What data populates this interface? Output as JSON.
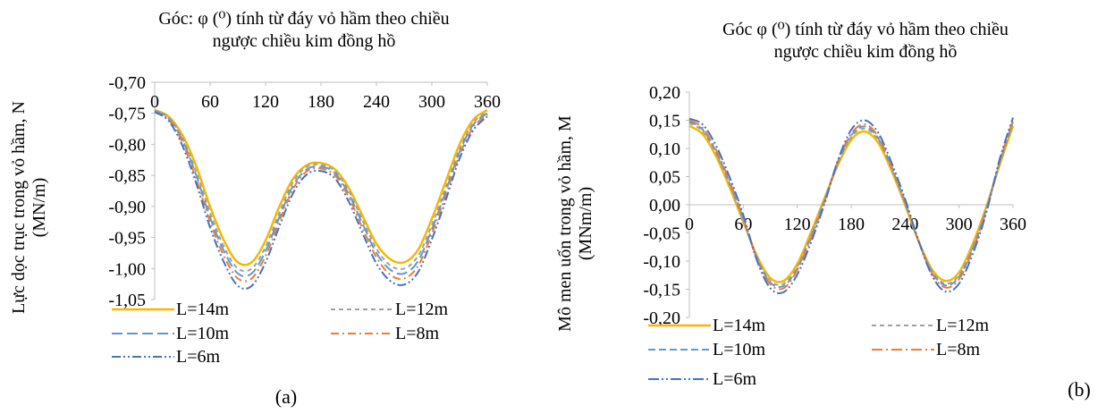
{
  "chart_data": [
    {
      "id": "a",
      "type": "line",
      "panel_label": "(a)",
      "title_lines": [
        "Góc: φ (⁰) tính từ đáy vỏ hầm theo chiều",
        "ngược chiều kim đồng hồ"
      ],
      "ylabel_lines": [
        "Lực dọc trục trong vỏ hầm, N",
        "(MN/m)"
      ],
      "xlim": [
        0,
        360
      ],
      "ylim": [
        -1.05,
        -0.7
      ],
      "x_axis_position": "top",
      "xticks": [
        "0",
        "60",
        "120",
        "180",
        "240",
        "300",
        "360"
      ],
      "yticks": [
        "-0,70",
        "-0,75",
        "-0,80",
        "-0,85",
        "-0,90",
        "-0,95",
        "-1,00",
        "-1,05"
      ],
      "grid": false,
      "legend_position": "bottom",
      "x": [
        0,
        15,
        30,
        45,
        60,
        75,
        90,
        105,
        120,
        135,
        150,
        165,
        180,
        195,
        210,
        225,
        240,
        255,
        270,
        285,
        300,
        315,
        330,
        345,
        360
      ],
      "series": [
        {
          "name": "L=14m",
          "color": "#f5b800",
          "dash": "solid",
          "values": [
            -0.745,
            -0.755,
            -0.785,
            -0.835,
            -0.9,
            -0.955,
            -0.99,
            -0.99,
            -0.955,
            -0.9,
            -0.855,
            -0.833,
            -0.83,
            -0.84,
            -0.87,
            -0.915,
            -0.96,
            -0.985,
            -0.99,
            -0.97,
            -0.92,
            -0.86,
            -0.8,
            -0.76,
            -0.745
          ]
        },
        {
          "name": "L=12m",
          "color": "#a0a0a0",
          "dash": "5,4",
          "values": [
            -0.745,
            -0.757,
            -0.79,
            -0.845,
            -0.91,
            -0.965,
            -1.0,
            -1.0,
            -0.965,
            -0.91,
            -0.86,
            -0.836,
            -0.833,
            -0.843,
            -0.875,
            -0.922,
            -0.968,
            -0.995,
            -1.0,
            -0.98,
            -0.93,
            -0.87,
            -0.808,
            -0.765,
            -0.748
          ]
        },
        {
          "name": "L=10m",
          "color": "#5b9bd5",
          "dash": "12,5",
          "values": [
            -0.746,
            -0.758,
            -0.793,
            -0.85,
            -0.918,
            -0.972,
            -1.008,
            -1.008,
            -0.972,
            -0.917,
            -0.866,
            -0.84,
            -0.836,
            -0.846,
            -0.88,
            -0.928,
            -0.975,
            -1.002,
            -1.008,
            -0.988,
            -0.937,
            -0.876,
            -0.812,
            -0.768,
            -0.75
          ]
        },
        {
          "name": "L=8m",
          "color": "#ed7d31",
          "dash": "9,4,2,4",
          "values": [
            -0.747,
            -0.76,
            -0.797,
            -0.856,
            -0.925,
            -0.98,
            -1.016,
            -1.016,
            -0.98,
            -0.924,
            -0.871,
            -0.843,
            -0.839,
            -0.85,
            -0.885,
            -0.935,
            -0.982,
            -1.01,
            -1.016,
            -0.996,
            -0.944,
            -0.882,
            -0.817,
            -0.772,
            -0.752
          ]
        },
        {
          "name": "L=6m",
          "color": "#4472c4",
          "dash": "10,3,2,3,2,3",
          "values": [
            -0.748,
            -0.762,
            -0.802,
            -0.863,
            -0.934,
            -0.99,
            -1.028,
            -1.028,
            -0.99,
            -0.932,
            -0.878,
            -0.848,
            -0.843,
            -0.855,
            -0.892,
            -0.943,
            -0.992,
            -1.02,
            -1.026,
            -1.006,
            -0.953,
            -0.89,
            -0.823,
            -0.777,
            -0.755
          ]
        }
      ]
    },
    {
      "id": "b",
      "type": "line",
      "panel_label": "(b)",
      "title_lines": [
        "Góc φ (⁰) tính từ đáy vỏ hầm theo chiều",
        "ngược chiều kim đồng hồ"
      ],
      "ylabel_lines": [
        "Mô men uốn trong vỏ hầm, M",
        "(MNm/m)"
      ],
      "xlim": [
        0,
        360
      ],
      "ylim": [
        -0.2,
        0.2
      ],
      "x_axis_position": "zero",
      "xticks": [
        "0",
        "60",
        "120",
        "180",
        "240",
        "300",
        "360"
      ],
      "yticks": [
        "0,20",
        "0,15",
        "0,10",
        "0,05",
        "0,00",
        "-0,05",
        "-0,10",
        "-0,15",
        "-0,20"
      ],
      "grid": false,
      "legend_position": "bottom",
      "x": [
        0,
        15,
        30,
        45,
        60,
        75,
        90,
        105,
        120,
        135,
        150,
        165,
        180,
        195,
        210,
        225,
        240,
        255,
        270,
        285,
        300,
        315,
        330,
        345,
        360
      ],
      "series": [
        {
          "name": "L=14m",
          "color": "#f5b800",
          "dash": "solid",
          "values": [
            0.14,
            0.125,
            0.085,
            0.03,
            -0.03,
            -0.09,
            -0.13,
            -0.135,
            -0.105,
            -0.05,
            0.01,
            0.07,
            0.115,
            0.13,
            0.11,
            0.06,
            0.0,
            -0.065,
            -0.115,
            -0.135,
            -0.12,
            -0.07,
            -0.005,
            0.07,
            0.14
          ]
        },
        {
          "name": "L=12m",
          "color": "#a0a0a0",
          "dash": "5,4",
          "values": [
            0.145,
            0.13,
            0.09,
            0.035,
            -0.028,
            -0.092,
            -0.135,
            -0.14,
            -0.11,
            -0.055,
            0.008,
            0.072,
            0.12,
            0.135,
            0.115,
            0.063,
            0.002,
            -0.065,
            -0.118,
            -0.14,
            -0.125,
            -0.075,
            -0.008,
            0.072,
            0.145
          ]
        },
        {
          "name": "L=10m",
          "color": "#5b9bd5",
          "dash": "8,4",
          "values": [
            0.148,
            0.133,
            0.093,
            0.038,
            -0.026,
            -0.094,
            -0.138,
            -0.144,
            -0.113,
            -0.058,
            0.006,
            0.074,
            0.123,
            0.139,
            0.118,
            0.066,
            0.004,
            -0.065,
            -0.12,
            -0.143,
            -0.128,
            -0.078,
            -0.01,
            0.074,
            0.148
          ]
        },
        {
          "name": "L=8m",
          "color": "#ed7d31",
          "dash": "12,4,2,4",
          "values": [
            0.15,
            0.136,
            0.096,
            0.041,
            -0.024,
            -0.096,
            -0.141,
            -0.148,
            -0.116,
            -0.061,
            0.004,
            0.076,
            0.126,
            0.143,
            0.121,
            0.068,
            0.006,
            -0.065,
            -0.122,
            -0.147,
            -0.132,
            -0.081,
            -0.012,
            0.076,
            0.15
          ]
        },
        {
          "name": "L=6m",
          "color": "#4472c4",
          "dash": "12,3,2,3,2,3",
          "values": [
            0.153,
            0.142,
            0.104,
            0.048,
            -0.018,
            -0.098,
            -0.148,
            -0.155,
            -0.124,
            -0.068,
            0.0,
            0.078,
            0.133,
            0.15,
            0.128,
            0.074,
            0.01,
            -0.064,
            -0.126,
            -0.154,
            -0.14,
            -0.088,
            -0.016,
            0.08,
            0.155
          ]
        }
      ]
    }
  ]
}
